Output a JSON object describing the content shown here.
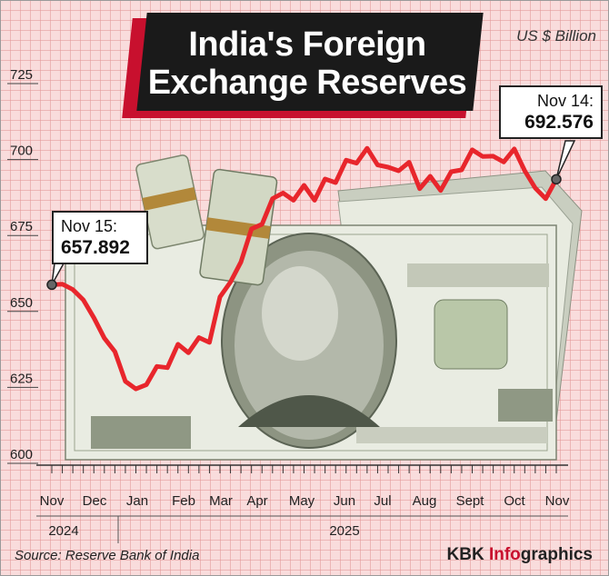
{
  "title_line1": "India's Foreign",
  "title_line2": "Exchange Reserves",
  "unit": "US $ Billion",
  "source": "Source: Reserve Bank of India",
  "brand": {
    "part1": "KBK ",
    "part2": "Info",
    "part3": "graphics"
  },
  "colors": {
    "line": "#e8262c",
    "title_bg": "#1a1a1a",
    "title_accent": "#c8102e",
    "brand_accent": "#c8102e"
  },
  "callouts": {
    "start": {
      "label": "Nov 15:",
      "value": "657.892"
    },
    "end": {
      "label": "Nov 14:",
      "value": "692.576"
    }
  },
  "background_illustration": "us-100-dollar-banknotes",
  "chart_data": {
    "type": "line",
    "title": "India's Foreign Exchange Reserves",
    "ylabel": "US $ Billion",
    "ylim": [
      600,
      725
    ],
    "yticks": [
      600,
      625,
      650,
      675,
      700,
      725
    ],
    "grid": true,
    "months": [
      "Nov",
      "Dec",
      "Jan",
      "Feb",
      "Mar",
      "Apr",
      "May",
      "Jun",
      "Jul",
      "Aug",
      "Sept",
      "Oct",
      "Nov"
    ],
    "years": [
      "2024",
      "2025"
    ],
    "series": [
      {
        "values": [
          657.9,
          658.1,
          656.3,
          652.9,
          647.0,
          640.3,
          635.9,
          626.1,
          623.6,
          625.0,
          631.0,
          630.6,
          638.3,
          635.5,
          640.5,
          638.9,
          653.9,
          658.8,
          665.4,
          676.3,
          677.8,
          686.2,
          688.1,
          685.7,
          690.6,
          685.7,
          692.7,
          691.5,
          698.9,
          697.9,
          702.8,
          697.3,
          696.6,
          695.4,
          698.2,
          689.5,
          693.6,
          688.9,
          695.1,
          695.7,
          702.3,
          700.1,
          700.2,
          698.3,
          702.6,
          695.4,
          689.7,
          686.2,
          692.6
        ]
      }
    ]
  }
}
